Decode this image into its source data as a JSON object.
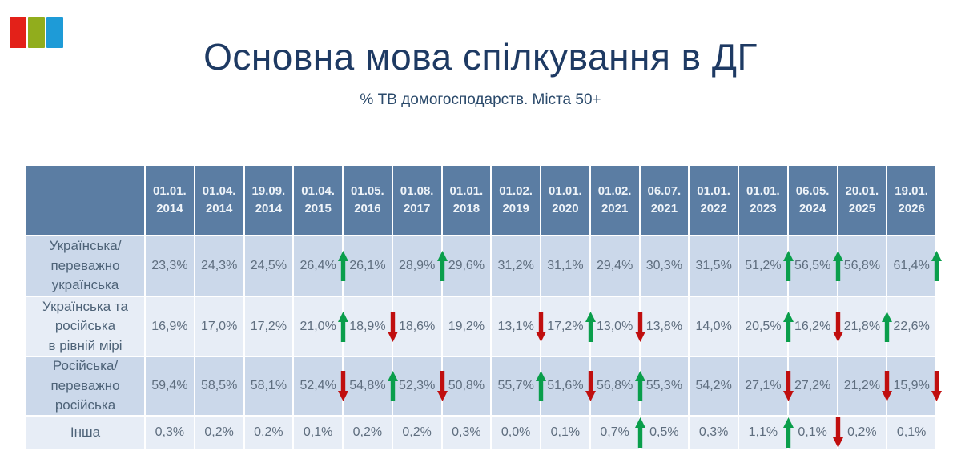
{
  "logo": {
    "colors": [
      "#e32119",
      "#91ad1d",
      "#1e9bd7"
    ]
  },
  "colors": {
    "title_text": "#1e3a63",
    "subtitle_text": "#2b4a6b",
    "header_bg": "#5b7da3",
    "header_text": "#eff4f9",
    "band_dark": "#cbd8ea",
    "band_light": "#e7edf6",
    "value_text": "#5f6e7f",
    "arrow_up": "#0a9e4b",
    "arrow_down": "#c00e0e"
  },
  "chart_data": {
    "type": "table",
    "title": "Основна мова спілкування в ДГ",
    "subtitle": "% ТВ домогосподарств. Міста 50+",
    "categories": [
      "01.01.\n2014",
      "01.04.\n2014",
      "19.09.\n2014",
      "01.04.\n2015",
      "01.05.\n2016",
      "01.08.\n2017",
      "01.01.\n2018",
      "01.02.\n2019",
      "01.01.\n2020",
      "01.02.\n2021",
      "06.07.\n2021",
      "01.01.\n2022",
      "01.01.\n2023",
      "06.05.\n2024",
      "20.01.\n2025",
      "19.01.\n2026"
    ],
    "series": [
      {
        "name": "Українська/\nпереважно\nукраїнська",
        "values": [
          "23,3%",
          "24,3%",
          "24,5%",
          "26,4%",
          "26,1%",
          "28,9%",
          "29,6%",
          "31,2%",
          "31,1%",
          "29,4%",
          "30,3%",
          "31,5%",
          "51,2%",
          "56,5%",
          "56,8%",
          "61,4%"
        ],
        "trends": [
          null,
          null,
          null,
          "up",
          null,
          "up",
          null,
          null,
          null,
          null,
          null,
          null,
          "up",
          "up",
          null,
          "up"
        ]
      },
      {
        "name": "Українська та\nросійська\nв рівній мірі",
        "values": [
          "16,9%",
          "17,0%",
          "17,2%",
          "21,0%",
          "18,9%",
          "18,6%",
          "19,2%",
          "13,1%",
          "17,2%",
          "13,0%",
          "13,8%",
          "14,0%",
          "20,5%",
          "16,2%",
          "21,8%",
          "22,6%"
        ],
        "trends": [
          null,
          null,
          null,
          "up",
          "down",
          null,
          null,
          "down",
          "up",
          "down",
          null,
          null,
          "up",
          "down",
          "up",
          null
        ]
      },
      {
        "name": "Російська/\nпереважно\nросійська",
        "values": [
          "59,4%",
          "58,5%",
          "58,1%",
          "52,4%",
          "54,8%",
          "52,3%",
          "50,8%",
          "55,7%",
          "51,6%",
          "56,8%",
          "55,3%",
          "54,2%",
          "27,1%",
          "27,2%",
          "21,2%",
          "15,9%"
        ],
        "trends": [
          null,
          null,
          null,
          "down",
          "up",
          "down",
          null,
          "up",
          "down",
          "up",
          null,
          null,
          "down",
          null,
          "down",
          "down"
        ]
      },
      {
        "name": "Інша",
        "values": [
          "0,3%",
          "0,2%",
          "0,2%",
          "0,1%",
          "0,2%",
          "0,2%",
          "0,3%",
          "0,0%",
          "0,1%",
          "0,7%",
          "0,5%",
          "0,3%",
          "1,1%",
          "0,1%",
          "0,2%",
          "0,1%"
        ],
        "trends": [
          null,
          null,
          null,
          null,
          null,
          null,
          null,
          null,
          null,
          "up",
          null,
          null,
          "up",
          "down",
          null,
          null
        ]
      }
    ]
  }
}
